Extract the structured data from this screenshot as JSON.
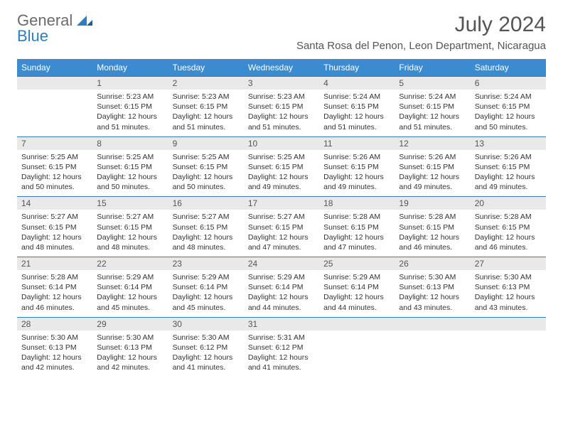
{
  "brand": {
    "line1": "General",
    "line2": "Blue"
  },
  "title": "July 2024",
  "location": "Santa Rosa del Penon, Leon Department, Nicaragua",
  "colors": {
    "header_bg": "#3b8bd0",
    "header_text": "#ffffff",
    "daynum_bg": "#e9e9e9",
    "rule": "#2e7cc2",
    "brand_gray": "#6b6b6b",
    "brand_blue": "#2e7cc2"
  },
  "dayheaders": [
    "Sunday",
    "Monday",
    "Tuesday",
    "Wednesday",
    "Thursday",
    "Friday",
    "Saturday"
  ],
  "weeks": [
    [
      {
        "day": "",
        "sunrise": "",
        "sunset": "",
        "daylight": ""
      },
      {
        "day": "1",
        "sunrise": "Sunrise: 5:23 AM",
        "sunset": "Sunset: 6:15 PM",
        "daylight": "Daylight: 12 hours and 51 minutes."
      },
      {
        "day": "2",
        "sunrise": "Sunrise: 5:23 AM",
        "sunset": "Sunset: 6:15 PM",
        "daylight": "Daylight: 12 hours and 51 minutes."
      },
      {
        "day": "3",
        "sunrise": "Sunrise: 5:23 AM",
        "sunset": "Sunset: 6:15 PM",
        "daylight": "Daylight: 12 hours and 51 minutes."
      },
      {
        "day": "4",
        "sunrise": "Sunrise: 5:24 AM",
        "sunset": "Sunset: 6:15 PM",
        "daylight": "Daylight: 12 hours and 51 minutes."
      },
      {
        "day": "5",
        "sunrise": "Sunrise: 5:24 AM",
        "sunset": "Sunset: 6:15 PM",
        "daylight": "Daylight: 12 hours and 51 minutes."
      },
      {
        "day": "6",
        "sunrise": "Sunrise: 5:24 AM",
        "sunset": "Sunset: 6:15 PM",
        "daylight": "Daylight: 12 hours and 50 minutes."
      }
    ],
    [
      {
        "day": "7",
        "sunrise": "Sunrise: 5:25 AM",
        "sunset": "Sunset: 6:15 PM",
        "daylight": "Daylight: 12 hours and 50 minutes."
      },
      {
        "day": "8",
        "sunrise": "Sunrise: 5:25 AM",
        "sunset": "Sunset: 6:15 PM",
        "daylight": "Daylight: 12 hours and 50 minutes."
      },
      {
        "day": "9",
        "sunrise": "Sunrise: 5:25 AM",
        "sunset": "Sunset: 6:15 PM",
        "daylight": "Daylight: 12 hours and 50 minutes."
      },
      {
        "day": "10",
        "sunrise": "Sunrise: 5:25 AM",
        "sunset": "Sunset: 6:15 PM",
        "daylight": "Daylight: 12 hours and 49 minutes."
      },
      {
        "day": "11",
        "sunrise": "Sunrise: 5:26 AM",
        "sunset": "Sunset: 6:15 PM",
        "daylight": "Daylight: 12 hours and 49 minutes."
      },
      {
        "day": "12",
        "sunrise": "Sunrise: 5:26 AM",
        "sunset": "Sunset: 6:15 PM",
        "daylight": "Daylight: 12 hours and 49 minutes."
      },
      {
        "day": "13",
        "sunrise": "Sunrise: 5:26 AM",
        "sunset": "Sunset: 6:15 PM",
        "daylight": "Daylight: 12 hours and 49 minutes."
      }
    ],
    [
      {
        "day": "14",
        "sunrise": "Sunrise: 5:27 AM",
        "sunset": "Sunset: 6:15 PM",
        "daylight": "Daylight: 12 hours and 48 minutes."
      },
      {
        "day": "15",
        "sunrise": "Sunrise: 5:27 AM",
        "sunset": "Sunset: 6:15 PM",
        "daylight": "Daylight: 12 hours and 48 minutes."
      },
      {
        "day": "16",
        "sunrise": "Sunrise: 5:27 AM",
        "sunset": "Sunset: 6:15 PM",
        "daylight": "Daylight: 12 hours and 48 minutes."
      },
      {
        "day": "17",
        "sunrise": "Sunrise: 5:27 AM",
        "sunset": "Sunset: 6:15 PM",
        "daylight": "Daylight: 12 hours and 47 minutes."
      },
      {
        "day": "18",
        "sunrise": "Sunrise: 5:28 AM",
        "sunset": "Sunset: 6:15 PM",
        "daylight": "Daylight: 12 hours and 47 minutes."
      },
      {
        "day": "19",
        "sunrise": "Sunrise: 5:28 AM",
        "sunset": "Sunset: 6:15 PM",
        "daylight": "Daylight: 12 hours and 46 minutes."
      },
      {
        "day": "20",
        "sunrise": "Sunrise: 5:28 AM",
        "sunset": "Sunset: 6:15 PM",
        "daylight": "Daylight: 12 hours and 46 minutes."
      }
    ],
    [
      {
        "day": "21",
        "sunrise": "Sunrise: 5:28 AM",
        "sunset": "Sunset: 6:14 PM",
        "daylight": "Daylight: 12 hours and 46 minutes."
      },
      {
        "day": "22",
        "sunrise": "Sunrise: 5:29 AM",
        "sunset": "Sunset: 6:14 PM",
        "daylight": "Daylight: 12 hours and 45 minutes."
      },
      {
        "day": "23",
        "sunrise": "Sunrise: 5:29 AM",
        "sunset": "Sunset: 6:14 PM",
        "daylight": "Daylight: 12 hours and 45 minutes."
      },
      {
        "day": "24",
        "sunrise": "Sunrise: 5:29 AM",
        "sunset": "Sunset: 6:14 PM",
        "daylight": "Daylight: 12 hours and 44 minutes."
      },
      {
        "day": "25",
        "sunrise": "Sunrise: 5:29 AM",
        "sunset": "Sunset: 6:14 PM",
        "daylight": "Daylight: 12 hours and 44 minutes."
      },
      {
        "day": "26",
        "sunrise": "Sunrise: 5:30 AM",
        "sunset": "Sunset: 6:13 PM",
        "daylight": "Daylight: 12 hours and 43 minutes."
      },
      {
        "day": "27",
        "sunrise": "Sunrise: 5:30 AM",
        "sunset": "Sunset: 6:13 PM",
        "daylight": "Daylight: 12 hours and 43 minutes."
      }
    ],
    [
      {
        "day": "28",
        "sunrise": "Sunrise: 5:30 AM",
        "sunset": "Sunset: 6:13 PM",
        "daylight": "Daylight: 12 hours and 42 minutes."
      },
      {
        "day": "29",
        "sunrise": "Sunrise: 5:30 AM",
        "sunset": "Sunset: 6:13 PM",
        "daylight": "Daylight: 12 hours and 42 minutes."
      },
      {
        "day": "30",
        "sunrise": "Sunrise: 5:30 AM",
        "sunset": "Sunset: 6:12 PM",
        "daylight": "Daylight: 12 hours and 41 minutes."
      },
      {
        "day": "31",
        "sunrise": "Sunrise: 5:31 AM",
        "sunset": "Sunset: 6:12 PM",
        "daylight": "Daylight: 12 hours and 41 minutes."
      },
      {
        "day": "",
        "sunrise": "",
        "sunset": "",
        "daylight": ""
      },
      {
        "day": "",
        "sunrise": "",
        "sunset": "",
        "daylight": ""
      },
      {
        "day": "",
        "sunrise": "",
        "sunset": "",
        "daylight": ""
      }
    ]
  ]
}
